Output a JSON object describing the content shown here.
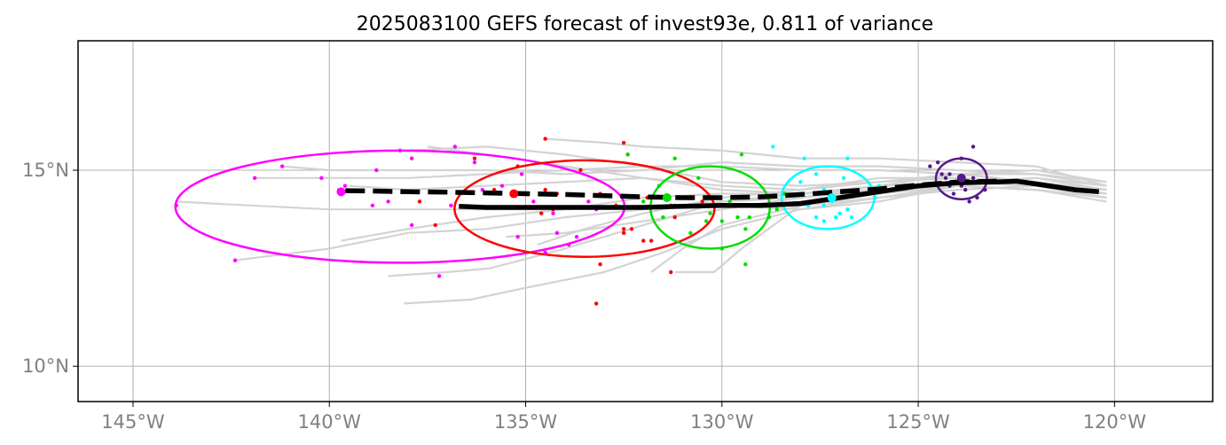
{
  "chart_data": {
    "type": "scatter",
    "title": "2025083100 GEFS forecast of invest93e, 0.811 of variance",
    "xlabel": "",
    "ylabel": "",
    "xlim": [
      -146.4,
      -117.5
    ],
    "ylim": [
      9.1,
      18.3
    ],
    "x_ticks": [
      {
        "value": -145,
        "label": "145°W"
      },
      {
        "value": -140,
        "label": "140°W"
      },
      {
        "value": -135,
        "label": "135°W"
      },
      {
        "value": -130,
        "label": "130°W"
      },
      {
        "value": -125,
        "label": "125°W"
      },
      {
        "value": -120,
        "label": "120°W"
      }
    ],
    "y_ticks": [
      {
        "value": 10,
        "label": "10°N"
      },
      {
        "value": 15,
        "label": "15°N"
      }
    ],
    "grid": true,
    "colors": {
      "ensemble_tracks": "#d3d3d3",
      "mean_track": "#000000",
      "dashed_track": "#000000",
      "ellipse_1": "#ff00ff",
      "ellipse_2": "#ff0000",
      "ellipse_3": "#00dd00",
      "ellipse_4": "#00ffff",
      "ellipse_5": "#551a8b",
      "grid": "#b0b0b0",
      "tick_label": "#808080"
    },
    "ensemble_tracks": [
      [
        [
          -120.2,
          14.7
        ],
        [
          -122,
          15.0
        ],
        [
          -124,
          14.9
        ],
        [
          -126,
          14.6
        ],
        [
          -128,
          14.3
        ],
        [
          -130,
          14.2
        ],
        [
          -132,
          14.0
        ],
        [
          -134,
          13.8
        ],
        [
          -136,
          13.5
        ],
        [
          -138,
          13.4
        ],
        [
          -140,
          13.0
        ],
        [
          -142.4,
          12.7
        ]
      ],
      [
        [
          -120.2,
          14.6
        ],
        [
          -122,
          14.8
        ],
        [
          -124,
          14.7
        ],
        [
          -126,
          14.5
        ],
        [
          -128,
          14.4
        ],
        [
          -130,
          14.5
        ],
        [
          -132,
          14.8
        ],
        [
          -134,
          15.1
        ],
        [
          -136,
          15.4
        ],
        [
          -137.5,
          15.6
        ]
      ],
      [
        [
          -120.2,
          14.5
        ],
        [
          -122,
          14.7
        ],
        [
          -124,
          14.8
        ],
        [
          -126,
          14.7
        ],
        [
          -128,
          14.6
        ],
        [
          -130,
          14.7
        ],
        [
          -132,
          15.1
        ],
        [
          -134,
          15.4
        ],
        [
          -136,
          15.6
        ],
        [
          -138,
          15.5
        ]
      ],
      [
        [
          -120.2,
          14.4
        ],
        [
          -122,
          14.6
        ],
        [
          -124,
          14.7
        ],
        [
          -126,
          14.6
        ],
        [
          -128,
          14.4
        ],
        [
          -130,
          14.2
        ],
        [
          -132,
          13.6
        ],
        [
          -134,
          13.0
        ],
        [
          -135.9,
          12.5
        ],
        [
          -137,
          12.4
        ],
        [
          -138.5,
          12.3
        ]
      ],
      [
        [
          -120.2,
          14.3
        ],
        [
          -122,
          14.5
        ],
        [
          -124,
          14.6
        ],
        [
          -126,
          14.4
        ],
        [
          -128,
          14.1
        ],
        [
          -130,
          13.6
        ],
        [
          -131,
          13.0
        ],
        [
          -131.8,
          12.4
        ]
      ],
      [
        [
          -120.2,
          14.3
        ],
        [
          -122,
          14.6
        ],
        [
          -124,
          14.5
        ],
        [
          -126,
          14.3
        ],
        [
          -128,
          14.0
        ],
        [
          -130,
          13.5
        ],
        [
          -131.5,
          12.9
        ],
        [
          -133,
          12.4
        ],
        [
          -134,
          12.2
        ],
        [
          -135,
          12.0
        ],
        [
          -136.4,
          11.7
        ],
        [
          -138.1,
          11.6
        ]
      ],
      [
        [
          -120.2,
          14.2
        ],
        [
          -122,
          14.5
        ],
        [
          -124,
          14.6
        ],
        [
          -126,
          14.2
        ],
        [
          -128,
          14.0
        ],
        [
          -130,
          14.1
        ],
        [
          -132,
          14.1
        ],
        [
          -134,
          14.0
        ],
        [
          -136,
          14.0
        ],
        [
          -138,
          14.0
        ],
        [
          -140,
          14.0
        ],
        [
          -142,
          14.1
        ],
        [
          -143.9,
          14.2
        ]
      ],
      [
        [
          -120.2,
          14.6
        ],
        [
          -122,
          14.9
        ],
        [
          -124,
          15.0
        ],
        [
          -126,
          15.1
        ],
        [
          -128,
          15.1
        ],
        [
          -130,
          15.2
        ],
        [
          -132,
          15.0
        ],
        [
          -134,
          14.9
        ],
        [
          -136,
          15.0
        ],
        [
          -138,
          15.0
        ],
        [
          -140,
          15.0
        ],
        [
          -141.2,
          15.1
        ]
      ],
      [
        [
          -120.2,
          14.5
        ],
        [
          -122,
          14.7
        ],
        [
          -124,
          14.9
        ],
        [
          -126,
          15.0
        ],
        [
          -128,
          15.0
        ],
        [
          -130,
          15.1
        ],
        [
          -132,
          15.1
        ],
        [
          -134,
          15.0
        ],
        [
          -136,
          14.9
        ],
        [
          -138,
          14.8
        ],
        [
          -140,
          14.8
        ],
        [
          -141.9,
          14.8
        ]
      ],
      [
        [
          -120.2,
          14.4
        ],
        [
          -122,
          14.6
        ],
        [
          -124,
          14.7
        ],
        [
          -126,
          14.6
        ],
        [
          -128,
          14.4
        ],
        [
          -130,
          14.4
        ],
        [
          -132,
          14.3
        ],
        [
          -134,
          14.0
        ],
        [
          -136,
          13.8
        ],
        [
          -138,
          13.5
        ],
        [
          -139.7,
          13.2
        ]
      ],
      [
        [
          -120.2,
          14.6
        ],
        [
          -122,
          15.1
        ],
        [
          -124,
          15.2
        ],
        [
          -126,
          15.3
        ],
        [
          -128,
          15.3
        ],
        [
          -130,
          15.5
        ],
        [
          -132,
          15.6
        ],
        [
          -133,
          15.7
        ],
        [
          -134.5,
          15.8
        ]
      ],
      [
        [
          -120.2,
          14.4
        ],
        [
          -122,
          14.7
        ],
        [
          -124,
          14.8
        ],
        [
          -126,
          14.8
        ],
        [
          -128,
          14.5
        ],
        [
          -130,
          14.3
        ],
        [
          -132,
          13.9
        ],
        [
          -133.5,
          13.5
        ],
        [
          -134.7,
          13.1
        ]
      ],
      [
        [
          -120.2,
          14.5
        ],
        [
          -122,
          14.8
        ],
        [
          -124,
          14.6
        ],
        [
          -126,
          14.3
        ],
        [
          -128,
          14.1
        ],
        [
          -129.5,
          13.0
        ],
        [
          -130.2,
          12.4
        ],
        [
          -131.2,
          12.4
        ]
      ],
      [
        [
          -120.2,
          14.7
        ],
        [
          -122,
          14.9
        ],
        [
          -124,
          14.9
        ],
        [
          -126,
          14.7
        ],
        [
          -128,
          14.5
        ],
        [
          -130,
          14.6
        ],
        [
          -132,
          14.8
        ],
        [
          -134,
          14.7
        ],
        [
          -136,
          14.6
        ],
        [
          -138,
          14.5
        ],
        [
          -139.5,
          14.6
        ]
      ],
      [
        [
          -120.2,
          14.3
        ],
        [
          -122,
          14.5
        ],
        [
          -124,
          14.6
        ],
        [
          -126,
          14.5
        ],
        [
          -128,
          14.3
        ],
        [
          -130,
          14.0
        ],
        [
          -132,
          13.7
        ],
        [
          -134,
          13.4
        ],
        [
          -135.5,
          13.3
        ]
      ]
    ],
    "mean_track": [
      [
        -120.4,
        14.45
      ],
      [
        -121,
        14.5
      ],
      [
        -122,
        14.65
      ],
      [
        -122.5,
        14.72
      ],
      [
        -123,
        14.7
      ],
      [
        -124,
        14.68
      ],
      [
        -125,
        14.6
      ],
      [
        -126,
        14.45
      ],
      [
        -127,
        14.3
      ],
      [
        -128,
        14.15
      ],
      [
        -129,
        14.1
      ],
      [
        -130,
        14.1
      ],
      [
        -131,
        14.08
      ],
      [
        -132,
        14.05
      ],
      [
        -133,
        14.05
      ],
      [
        -134,
        14.05
      ],
      [
        -135,
        14.05
      ],
      [
        -136,
        14.05
      ],
      [
        -136.7,
        14.08
      ]
    ],
    "dashed_track": [
      [
        -123,
        14.72
      ],
      [
        -124,
        14.7
      ],
      [
        -125,
        14.62
      ],
      [
        -126,
        14.52
      ],
      [
        -127,
        14.45
      ],
      [
        -128,
        14.38
      ],
      [
        -129,
        14.32
      ],
      [
        -130,
        14.3
      ],
      [
        -131,
        14.3
      ],
      [
        -132,
        14.32
      ],
      [
        -133,
        14.35
      ],
      [
        -134,
        14.38
      ],
      [
        -135,
        14.4
      ],
      [
        -136,
        14.42
      ],
      [
        -137,
        14.44
      ],
      [
        -138,
        14.45
      ],
      [
        -139,
        14.47
      ],
      [
        -139.8,
        14.48
      ]
    ],
    "ellipses": [
      {
        "color_key": "ellipse_1",
        "cx": -138.2,
        "cy": 14.07,
        "rx": 5.72,
        "ry": 1.43,
        "center": [
          -139.7,
          14.45
        ]
      },
      {
        "color_key": "ellipse_2",
        "cx": -133.5,
        "cy": 14.02,
        "rx": 3.31,
        "ry": 1.23,
        "center": [
          -135.3,
          14.4
        ]
      },
      {
        "color_key": "ellipse_3",
        "cx": -130.3,
        "cy": 14.05,
        "rx": 1.52,
        "ry": 1.05,
        "center": [
          -131.4,
          14.3
        ]
      },
      {
        "color_key": "ellipse_4",
        "cx": -127.3,
        "cy": 14.3,
        "rx": 1.18,
        "ry": 0.8,
        "center": [
          -127.2,
          14.3
        ]
      },
      {
        "color_key": "ellipse_5",
        "cx": -123.9,
        "cy": 14.78,
        "rx": 0.65,
        "ry": 0.52,
        "center": [
          -123.9,
          14.8
        ]
      }
    ],
    "scatter_points": {
      "ellipse_1": [
        [
          -141.2,
          15.1
        ],
        [
          -140.2,
          14.8
        ],
        [
          -138.8,
          15.0
        ],
        [
          -138.2,
          15.5
        ],
        [
          -137.9,
          15.3
        ],
        [
          -136.8,
          15.6
        ],
        [
          -136.3,
          15.2
        ],
        [
          -138.9,
          14.1
        ],
        [
          -138.5,
          14.2
        ],
        [
          -139.6,
          14.6
        ],
        [
          -136.9,
          14.1
        ],
        [
          -136.1,
          14.5
        ],
        [
          -134.8,
          14.2
        ],
        [
          -134.2,
          13.4
        ],
        [
          -134.3,
          13.9
        ],
        [
          -133.7,
          13.3
        ],
        [
          -133.9,
          13.1
        ],
        [
          -134.5,
          12.9
        ],
        [
          -133.2,
          14.0
        ],
        [
          -135.2,
          13.3
        ],
        [
          -137.9,
          13.6
        ],
        [
          -143.9,
          14.1
        ],
        [
          -142.4,
          12.7
        ],
        [
          -141.9,
          14.8
        ],
        [
          -137.2,
          12.3
        ],
        [
          -135.6,
          14.6
        ],
        [
          -135.1,
          14.9
        ],
        [
          -133.4,
          14.2
        ]
      ],
      "ellipse_2": [
        [
          -134.5,
          15.8
        ],
        [
          -132.5,
          15.7
        ],
        [
          -135.2,
          15.1
        ],
        [
          -136.3,
          15.3
        ],
        [
          -133.6,
          15.0
        ],
        [
          -132.4,
          15.4
        ],
        [
          -135.8,
          14.5
        ],
        [
          -134.5,
          14.5
        ],
        [
          -134.2,
          14.4
        ],
        [
          -134.3,
          14.0
        ],
        [
          -133.1,
          14.4
        ],
        [
          -132.7,
          14.1
        ],
        [
          -131.9,
          14.3
        ],
        [
          -131.3,
          14.1
        ],
        [
          -130.6,
          14.1
        ],
        [
          -130.5,
          14.2
        ],
        [
          -131.2,
          13.8
        ],
        [
          -132.3,
          13.5
        ],
        [
          -132.0,
          13.2
        ],
        [
          -131.8,
          13.2
        ],
        [
          -133.1,
          12.6
        ],
        [
          -137.3,
          13.6
        ],
        [
          -137.7,
          14.2
        ],
        [
          -134.6,
          13.9
        ],
        [
          -133.2,
          11.6
        ],
        [
          -131.3,
          12.4
        ],
        [
          -132.5,
          13.4
        ],
        [
          -132.5,
          13.5
        ]
      ],
      "ellipse_3": [
        [
          -132.4,
          15.4
        ],
        [
          -131.2,
          15.3
        ],
        [
          -130.6,
          14.8
        ],
        [
          -129.5,
          15.4
        ],
        [
          -129.8,
          14.2
        ],
        [
          -129.3,
          14.1
        ],
        [
          -129.6,
          13.8
        ],
        [
          -129.3,
          13.8
        ],
        [
          -130.0,
          13.7
        ],
        [
          -130.3,
          13.9
        ],
        [
          -130.6,
          14.1
        ],
        [
          -131.2,
          14.1
        ],
        [
          -131.6,
          14.6
        ],
        [
          -131.5,
          13.8
        ],
        [
          -130.8,
          13.4
        ],
        [
          -129.4,
          12.6
        ],
        [
          -130.0,
          13.0
        ],
        [
          -128.6,
          14.0
        ],
        [
          -128.4,
          14.4
        ],
        [
          -131.7,
          14.3
        ],
        [
          -132.0,
          14.2
        ],
        [
          -129.4,
          13.5
        ],
        [
          -128.8,
          13.8
        ],
        [
          -130.4,
          13.7
        ],
        [
          -128.8,
          14.1
        ]
      ],
      "ellipse_4": [
        [
          -128.7,
          15.6
        ],
        [
          -127.9,
          15.3
        ],
        [
          -126.8,
          15.3
        ],
        [
          -127.6,
          14.9
        ],
        [
          -128.0,
          14.7
        ],
        [
          -127.4,
          14.5
        ],
        [
          -127.2,
          14.3
        ],
        [
          -126.5,
          14.4
        ],
        [
          -126.8,
          14.0
        ],
        [
          -127.0,
          13.9
        ],
        [
          -127.4,
          14.1
        ],
        [
          -127.8,
          14.1
        ],
        [
          -127.6,
          13.8
        ],
        [
          -127.4,
          13.7
        ],
        [
          -127.1,
          13.8
        ],
        [
          -126.7,
          13.8
        ],
        [
          -126.1,
          14.3
        ],
        [
          -126.0,
          14.6
        ],
        [
          -127.2,
          14.2
        ],
        [
          -126.9,
          14.8
        ]
      ],
      "ellipse_5": [
        [
          -123.6,
          15.6
        ],
        [
          -123.9,
          15.3
        ],
        [
          -124.5,
          15.2
        ],
        [
          -124.7,
          15.1
        ],
        [
          -124.3,
          14.8
        ],
        [
          -124.2,
          14.6
        ],
        [
          -123.8,
          14.5
        ],
        [
          -124.1,
          14.4
        ],
        [
          -123.7,
          14.2
        ],
        [
          -123.5,
          14.3
        ],
        [
          -123.3,
          14.5
        ],
        [
          -124.4,
          14.9
        ],
        [
          -123.9,
          14.6
        ],
        [
          -124.0,
          14.7
        ],
        [
          -123.6,
          14.8
        ],
        [
          -124.2,
          14.9
        ]
      ]
    }
  }
}
